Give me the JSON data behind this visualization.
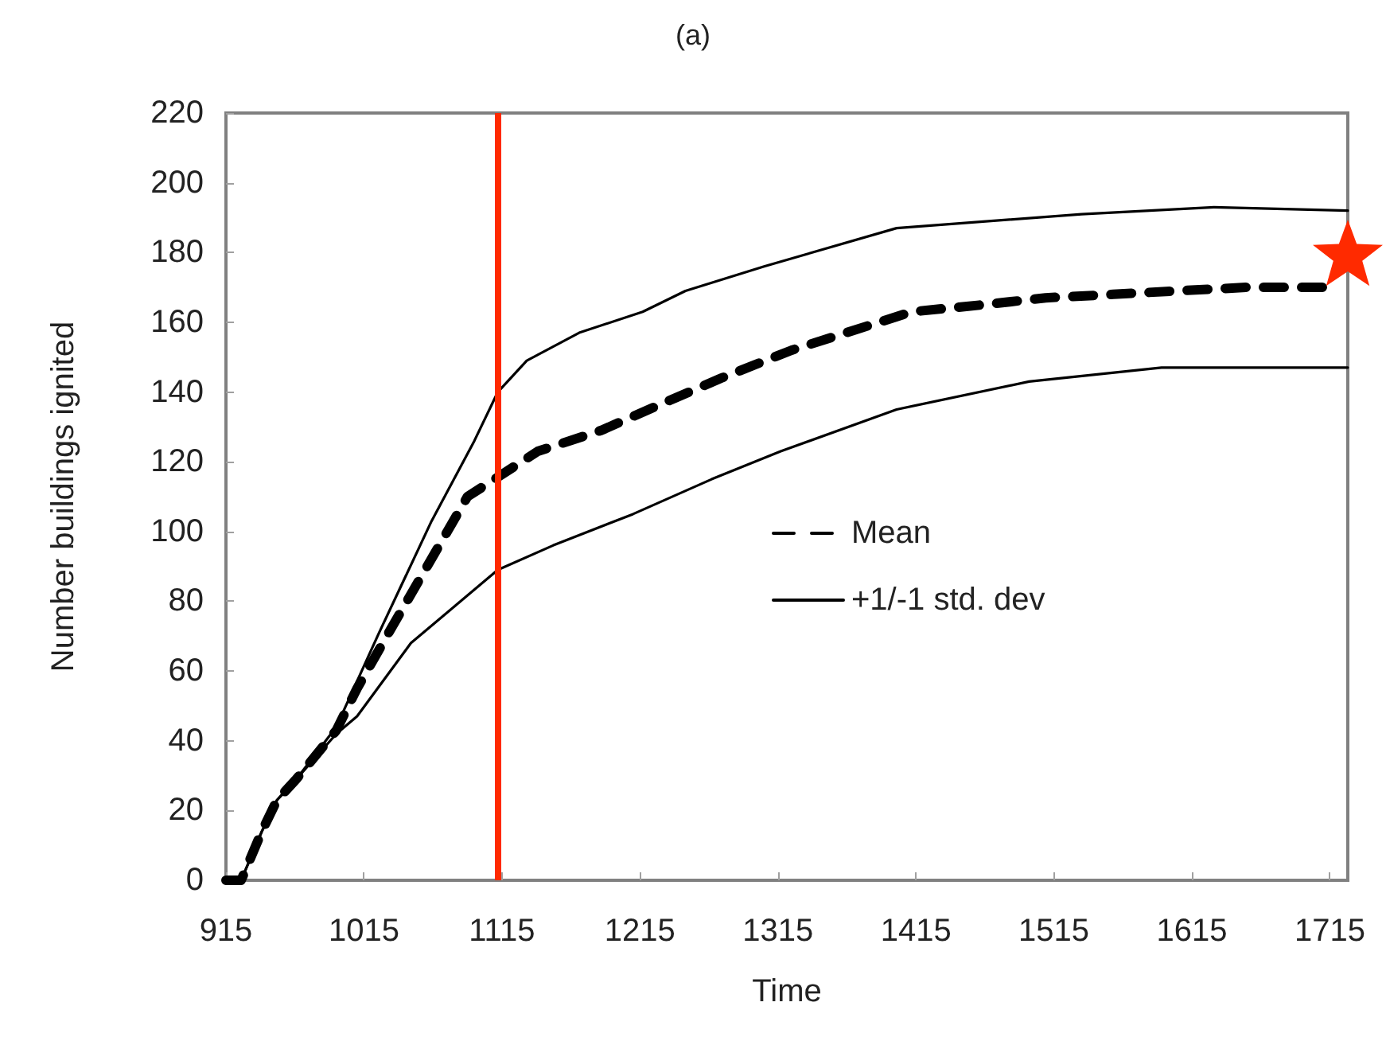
{
  "chart_data": {
    "type": "line",
    "title": "(a)",
    "xlabel": "Time",
    "ylabel": "Number buildings ignited",
    "xlim": [
      915,
      1728
    ],
    "xticks": [
      915,
      1015,
      1115,
      1215,
      1315,
      1415,
      1515,
      1615,
      1715
    ],
    "ylim": [
      0,
      220
    ],
    "yticks": [
      0,
      20,
      40,
      60,
      80,
      100,
      120,
      140,
      160,
      180,
      200,
      220
    ],
    "grid": false,
    "legend": "right",
    "marker": "none",
    "series": [
      {
        "name": "Mean",
        "color": "#000000",
        "line_style": "dashed",
        "x": [
          915,
          926,
          941,
          952,
          966,
          995,
          1010,
          1033,
          1090,
          1141,
          1187,
          1233,
          1274,
          1325,
          1412,
          1463,
          1509,
          1558,
          1604,
          1654,
          1715
        ],
        "values": [
          0,
          0,
          14,
          23,
          29,
          43,
          55,
          71,
          110,
          123,
          129,
          137,
          144,
          152,
          163,
          165,
          167,
          168,
          169,
          170,
          170
        ]
      },
      {
        "name": "+1/-1 std. dev",
        "color": "#000000",
        "line_style": "solid",
        "x": [
          915,
          926,
          941,
          952,
          966,
          995,
          1026,
          1064,
          1095,
          1112,
          1133,
          1171,
          1217,
          1248,
          1305,
          1401,
          1535,
          1631,
          1728
        ],
        "values": [
          0,
          0,
          14,
          23,
          29,
          44,
          71,
          103,
          126,
          140,
          149,
          157,
          163,
          169,
          176,
          187,
          191,
          193,
          192
        ]
      },
      {
        "color": "#000000",
        "line_style": "solid",
        "x": [
          915,
          926,
          941,
          952,
          966,
          995,
          1010,
          1049,
          1112,
          1152,
          1210,
          1267,
          1317,
          1401,
          1497,
          1593,
          1728
        ],
        "values": [
          0,
          0,
          14,
          23,
          29,
          42,
          47,
          68,
          89,
          96,
          105,
          115,
          123,
          135,
          143,
          147,
          147
        ]
      }
    ],
    "ref_lines": [
      {
        "axis": "x",
        "value": 1112,
        "color": "#ff2a00"
      }
    ]
  }
}
